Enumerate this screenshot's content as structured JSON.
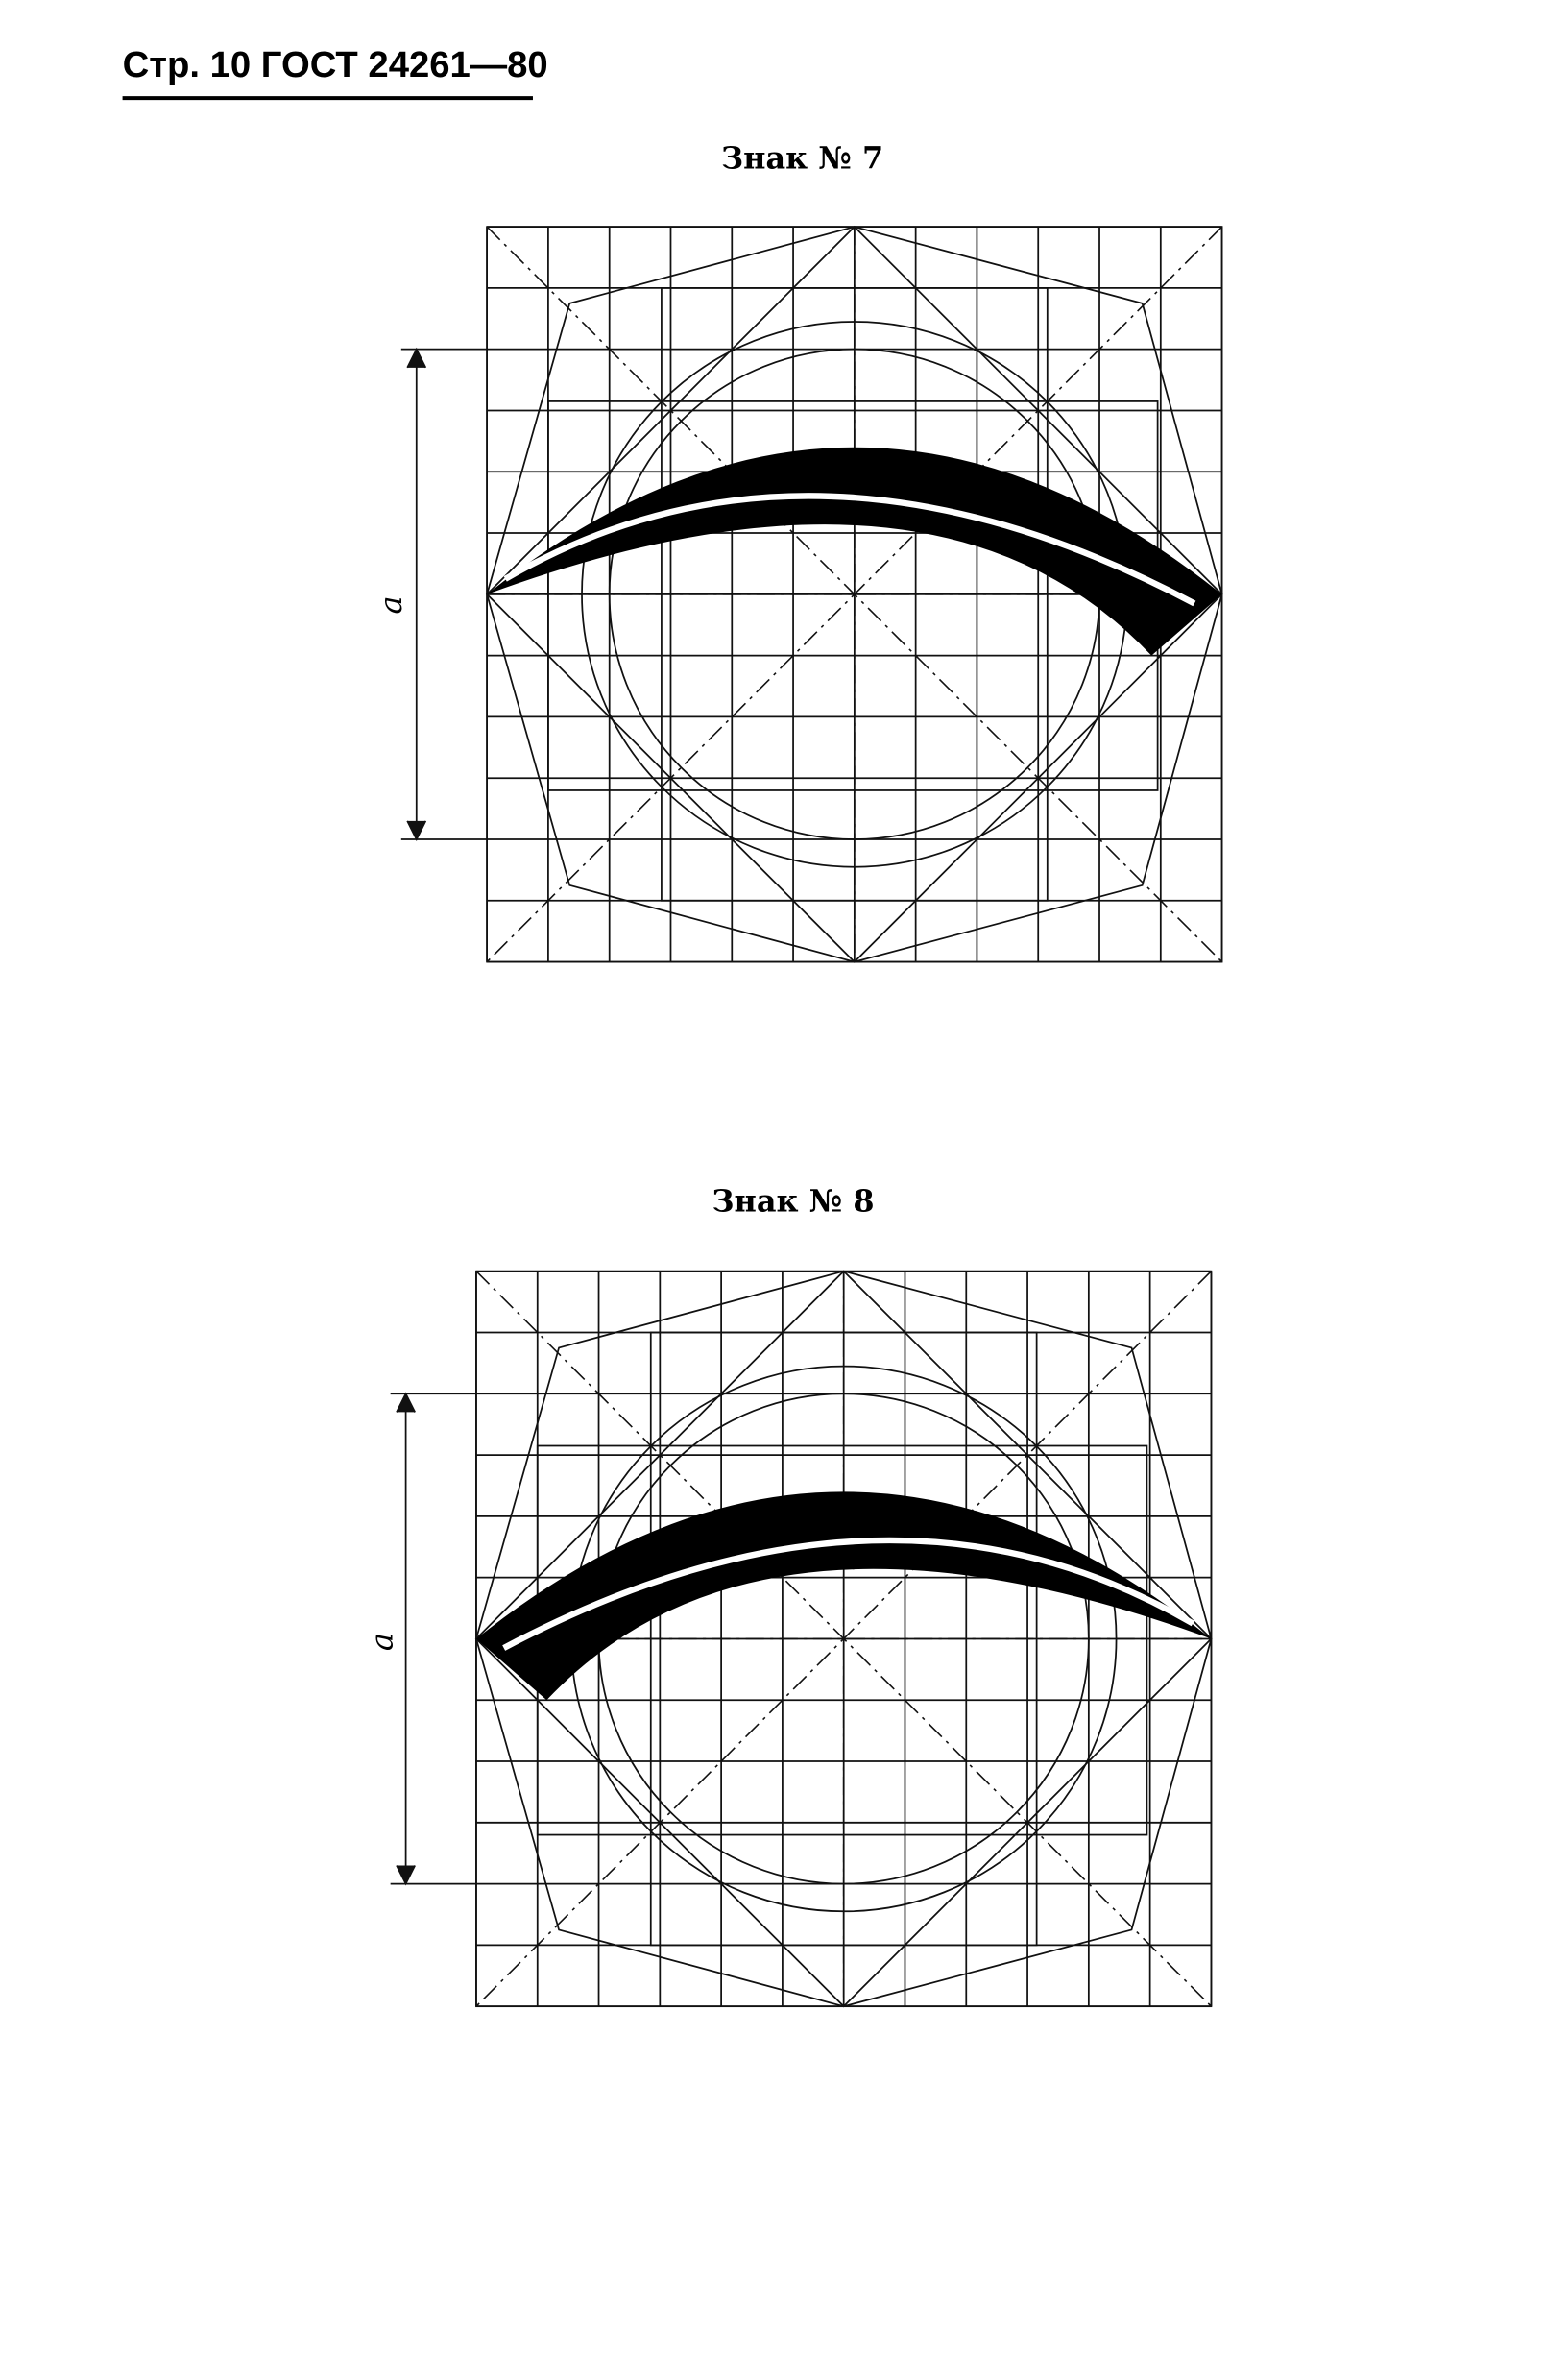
{
  "header": "Стр. 10 ГОСТ 24261—80",
  "figures": [
    {
      "title": "Знак № 7",
      "dimension_label": "a"
    },
    {
      "title": "Знак № 8",
      "dimension_label": "a"
    }
  ]
}
